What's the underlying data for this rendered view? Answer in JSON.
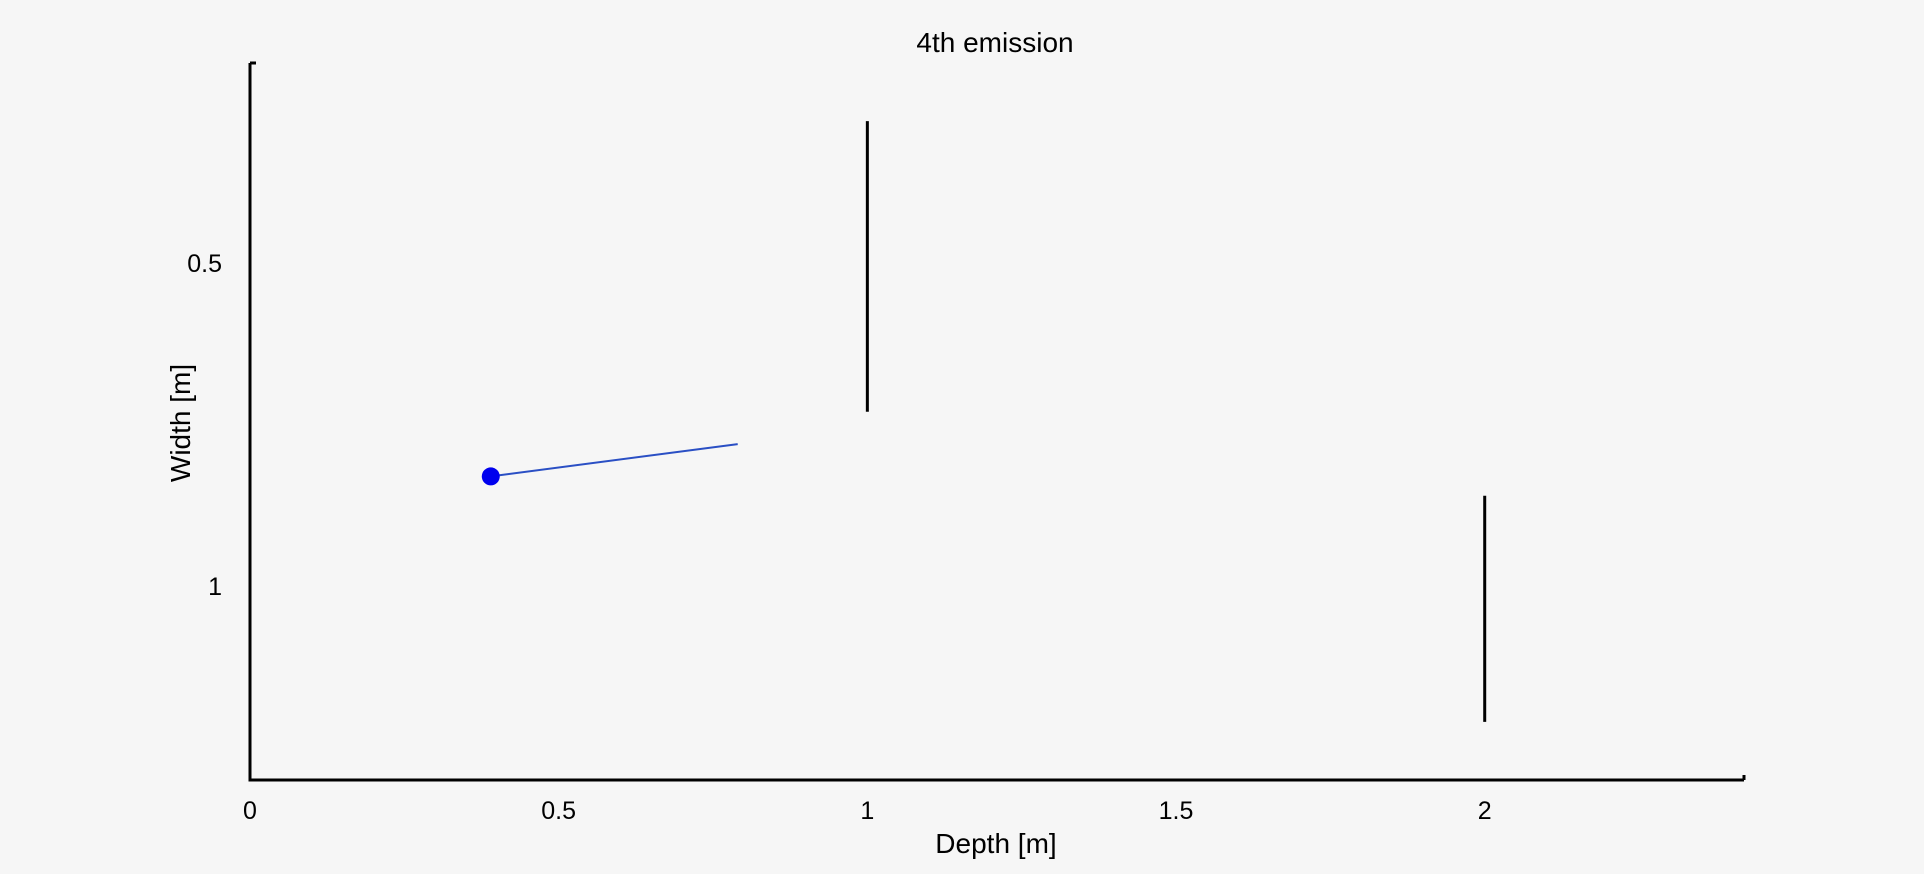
{
  "chart_data": {
    "type": "line",
    "title": "4th emission",
    "xlabel": "Depth [m]",
    "ylabel": "Width [m]",
    "xlim": [
      0,
      2.42
    ],
    "ylim": [
      1.3,
      0.19
    ],
    "y_inverted": true,
    "grid": false,
    "x_ticks": [
      {
        "value": 0,
        "label": "0"
      },
      {
        "value": 0.5,
        "label": "0.5"
      },
      {
        "value": 1,
        "label": "1"
      },
      {
        "value": 1.5,
        "label": "1.5"
      },
      {
        "value": 2,
        "label": "2"
      }
    ],
    "y_ticks": [
      {
        "value": 0.5,
        "label": "0.5"
      },
      {
        "value": 1,
        "label": "1"
      }
    ],
    "walls": [
      {
        "x": 1.0,
        "y_from": 0.28,
        "y_to": 0.73,
        "color": "#000000"
      },
      {
        "x": 2.0,
        "y_from": 0.86,
        "y_to": 1.21,
        "color": "#000000"
      }
    ],
    "ray": {
      "x": [
        0.39,
        0.79
      ],
      "y": [
        0.83,
        0.78
      ],
      "color": "#2a4fc4"
    },
    "source": {
      "x": 0.39,
      "y": 0.83,
      "color": "#0000ee"
    }
  }
}
